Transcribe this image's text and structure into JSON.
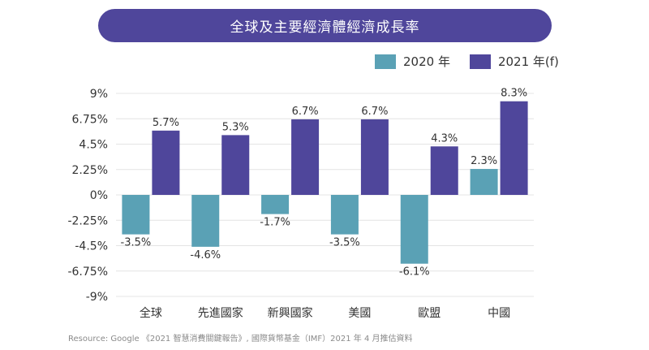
{
  "colors": {
    "banner": "#4f469b",
    "series_2020": "#5aa1b5",
    "series_2021": "#4f469b",
    "grid": "#e4e4e4",
    "text": "#333333"
  },
  "chart_data": {
    "type": "bar",
    "title": "全球及主要經濟體經濟成長率",
    "categories": [
      "全球",
      "先進國家",
      "新興國家",
      "美國",
      "歐盟",
      "中國"
    ],
    "series": [
      {
        "name": "2020 年",
        "values": [
          -3.5,
          -4.6,
          -1.7,
          -3.5,
          -6.1,
          2.3
        ],
        "labels": [
          "-3.5%",
          "-4.6%",
          "-1.7%",
          "-3.5%",
          "-6.1%",
          "2.3%"
        ]
      },
      {
        "name": "2021 年(f)",
        "values": [
          5.7,
          5.3,
          6.7,
          6.7,
          4.3,
          8.3
        ],
        "labels": [
          "5.7%",
          "5.3%",
          "6.7%",
          "6.7%",
          "4.3%",
          "8.3%"
        ]
      }
    ],
    "yticks": [
      9,
      6.75,
      4.5,
      2.25,
      0,
      -2.25,
      -4.5,
      -6.75,
      -9
    ],
    "ytick_labels": [
      "9%",
      "6.75%",
      "4.5%",
      "2.25%",
      "0%",
      "-2.25%",
      "-4.5%",
      "-6.75%",
      "-9%"
    ],
    "ylim": [
      -9,
      9
    ],
    "grid": true,
    "legend_position": "top-right"
  },
  "source": "Resource: Google 《2021 智慧消費關鍵報告》, 國際貨幣基金（IMF）2021 年 4 月推估資料"
}
